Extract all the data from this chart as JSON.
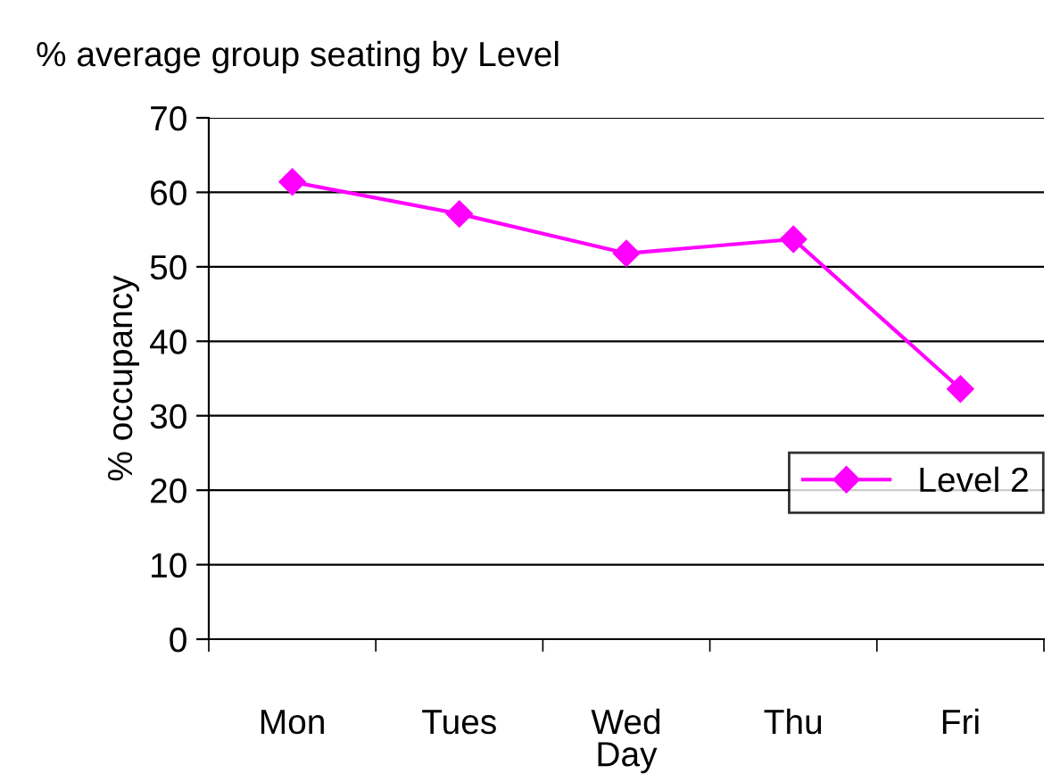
{
  "chart_data": {
    "type": "line",
    "title": "% average group seating by Level",
    "xlabel": "Day",
    "ylabel": "% occupancy",
    "categories": [
      "Mon",
      "Tues",
      "Wed",
      "Thu",
      "Fri"
    ],
    "series": [
      {
        "name": "Level 2",
        "color": "#ff00ff",
        "values": [
          61.4,
          57.1,
          51.8,
          53.7,
          33.6
        ]
      }
    ],
    "ylim": [
      0,
      70
    ],
    "yticks": [
      0,
      10,
      20,
      30,
      40,
      50,
      60,
      70
    ],
    "grid": "y",
    "legend": "right",
    "marker": "diamond",
    "line_style": "solid"
  }
}
